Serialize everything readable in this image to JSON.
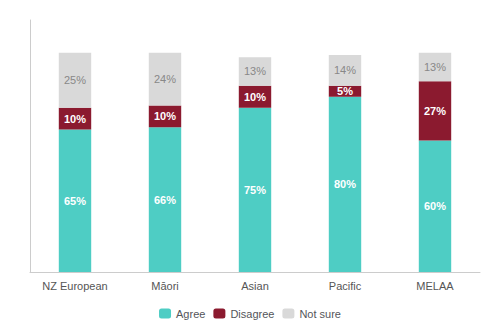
{
  "chart_data": {
    "type": "bar",
    "categories": [
      "NZ European",
      "Māori",
      "Asian",
      "Pacific",
      "MELAA"
    ],
    "series": [
      {
        "name": "Agree",
        "color": "#4ECDC4",
        "values": [
          65,
          66,
          75,
          80,
          60
        ],
        "value_labels": [
          "65%",
          "66%",
          "75%",
          "80%",
          "60%"
        ]
      },
      {
        "name": "Disagree",
        "color": "#8B1A2F",
        "values": [
          10,
          10,
          10,
          5,
          27
        ],
        "value_labels": [
          "10%",
          "10%",
          "10%",
          "5%",
          "27%"
        ]
      },
      {
        "name": "Not sure",
        "color": "#D9D9D9",
        "values": [
          25,
          24,
          13,
          14,
          13
        ],
        "value_labels": [
          "25%",
          "24%",
          "13%",
          "14%",
          "13%"
        ]
      }
    ],
    "stacked": true,
    "data_labels": true,
    "ylim": [
      0,
      115
    ],
    "tick_labels": "x",
    "grid": false,
    "legend": "bottom"
  }
}
